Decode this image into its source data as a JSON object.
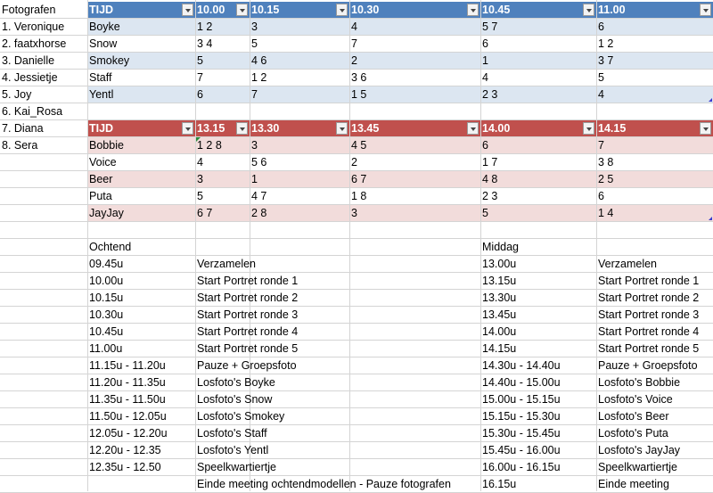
{
  "sidebar": {
    "title": "Fotografen",
    "items": [
      "1. Veronique",
      "2. faatxhorse",
      "3. Danielle",
      "4. Jessietje",
      "5. Joy",
      "6. Kai_Rosa",
      "7. Diana",
      "8. Sera"
    ]
  },
  "colors": {
    "table1_header": "#4f81bd",
    "table1_band": "#dce6f1",
    "table2_header": "#c0504d",
    "table2_band": "#f2dcdb",
    "gridline": "#d4d4d4"
  },
  "table1": {
    "headers": [
      "TIJD",
      "10.00",
      "10.15",
      "10.30",
      "10.45",
      "11.00"
    ],
    "rows": [
      [
        "Boyke",
        "1 2",
        "3",
        "4",
        "5 7",
        "6"
      ],
      [
        "Snow",
        "3 4",
        "5",
        "7",
        "6",
        "1 2"
      ],
      [
        "Smokey",
        "5",
        "4 6",
        "2",
        "1",
        "3 7"
      ],
      [
        "Staff",
        "7",
        "1 2",
        "3 6",
        "4",
        "5"
      ],
      [
        "Yentl",
        "6",
        "7",
        "1 5",
        "2 3",
        "4"
      ]
    ]
  },
  "table2": {
    "headers": [
      "TIJD",
      "13.15",
      "13.30",
      "13.45",
      "14.00",
      "14.15"
    ],
    "rows": [
      [
        "Bobbie",
        "1 2 8",
        "3",
        "4 5",
        "6",
        "7"
      ],
      [
        "Voice",
        "4",
        "5 6",
        "2",
        "1 7",
        "3 8"
      ],
      [
        "Beer",
        "3",
        "1",
        "6 7",
        "4 8",
        "2 5"
      ],
      [
        "Puta",
        "5",
        "4 7",
        "1 8",
        "2 3",
        "6"
      ],
      [
        "JayJay",
        "6 7",
        "2 8",
        "3",
        "5",
        "1 4"
      ]
    ]
  },
  "schedule": {
    "morning_label": "Ochtend",
    "afternoon_label": "Middag",
    "morning": [
      [
        "09.45u",
        "Verzamelen"
      ],
      [
        "10.00u",
        "Start Portret ronde 1"
      ],
      [
        "10.15u",
        "Start Portret ronde 2"
      ],
      [
        "10.30u",
        "Start Portret ronde 3"
      ],
      [
        "10.45u",
        "Start Portret ronde 4"
      ],
      [
        "11.00u",
        "Start Portret ronde 5"
      ],
      [
        "11.15u - 11.20u",
        "Pauze + Groepsfoto"
      ],
      [
        "11.20u - 11.35u",
        "Losfoto's Boyke"
      ],
      [
        "11.35u - 11.50u",
        "Losfoto's Snow"
      ],
      [
        "11.50u - 12.05u",
        "Losfoto's Smokey"
      ],
      [
        "12.05u - 12.20u",
        "Losfoto's Staff"
      ],
      [
        "12.20u - 12.35",
        "Losfoto's Yentl"
      ],
      [
        "12.35u - 12.50",
        "Speelkwartiertje"
      ],
      [
        "",
        "Einde meeting ochtendmodellen - Pauze fotografen"
      ]
    ],
    "afternoon": [
      [
        "13.00u",
        "Verzamelen"
      ],
      [
        "13.15u",
        "Start Portret ronde 1"
      ],
      [
        "13.30u",
        "Start Portret ronde 2"
      ],
      [
        "13.45u",
        "Start Portret ronde 3"
      ],
      [
        "14.00u",
        "Start Portret ronde 4"
      ],
      [
        "14.15u",
        "Start Portret ronde 5"
      ],
      [
        "14.30u - 14.40u",
        "Pauze + Groepsfoto"
      ],
      [
        "14.40u - 15.00u",
        "Losfoto's Bobbie"
      ],
      [
        "15.00u - 15.15u",
        "Losfoto's Voice"
      ],
      [
        "15.15u - 15.30u",
        "Losfoto's Beer"
      ],
      [
        "15.30u - 15.45u",
        "Losfoto's Puta"
      ],
      [
        "15.45u - 16.00u",
        "Losfoto's JayJay"
      ],
      [
        "16.00u - 16.15u",
        "Speelkwartiertje"
      ],
      [
        "16.15u",
        "Einde meeting"
      ]
    ]
  }
}
